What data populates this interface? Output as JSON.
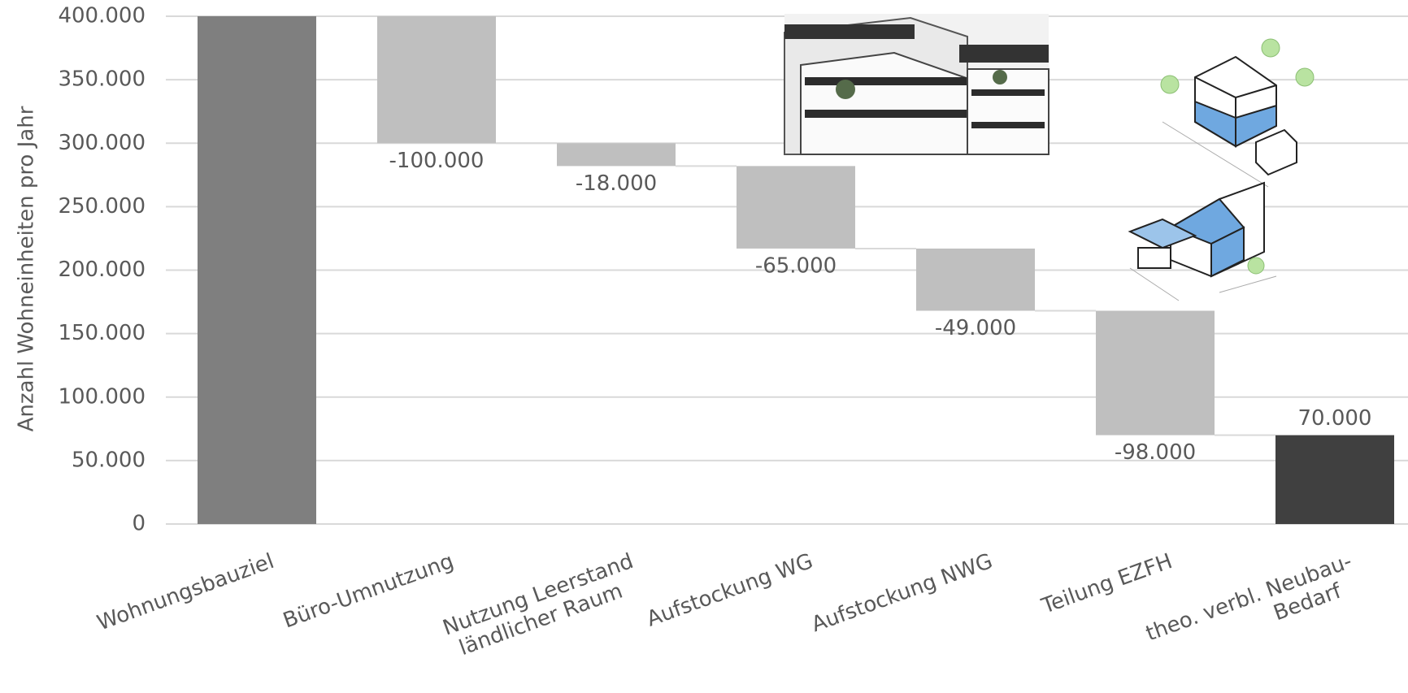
{
  "chart_data": {
    "type": "waterfall",
    "y_axis_label": "Anzahl Wohneinheiten pro Jahr",
    "categories": [
      [
        "Wohnungsbauziel"
      ],
      [
        "Büro-Umnutzung"
      ],
      [
        "Nutzung Leerstand",
        "ländlicher Raum"
      ],
      [
        "Aufstockung WG"
      ],
      [
        "Aufstockung NWG"
      ],
      [
        "Teilung EZFH"
      ],
      [
        "theo. verbl. Neubau-",
        "Bedarf"
      ]
    ],
    "values": [
      400000,
      -100000,
      -18000,
      -65000,
      -49000,
      -98000,
      70000
    ],
    "value_labels": [
      null,
      "-100.000",
      "-18.000",
      "-65.000",
      "-49.000",
      "-98.000",
      "70.000"
    ],
    "colors": [
      "#7f7f7f",
      "#bfbfbf",
      "#bfbfbf",
      "#bfbfbf",
      "#bfbfbf",
      "#bfbfbf",
      "#404040"
    ],
    "ylim": [
      0,
      400000
    ],
    "yticks": [
      0,
      {
        "value": 50000,
        "label": "50.000"
      },
      {
        "value": 100000,
        "label": "100.000"
      },
      {
        "value": 150000,
        "label": "150.000"
      },
      {
        "value": 200000,
        "label": "200.000"
      },
      {
        "value": 250000,
        "label": "250.000"
      },
      {
        "value": 300000,
        "label": "300.000"
      },
      {
        "value": 350000,
        "label": "350.000"
      },
      {
        "value": 400000,
        "label": "400.000"
      }
    ],
    "grid": true
  }
}
